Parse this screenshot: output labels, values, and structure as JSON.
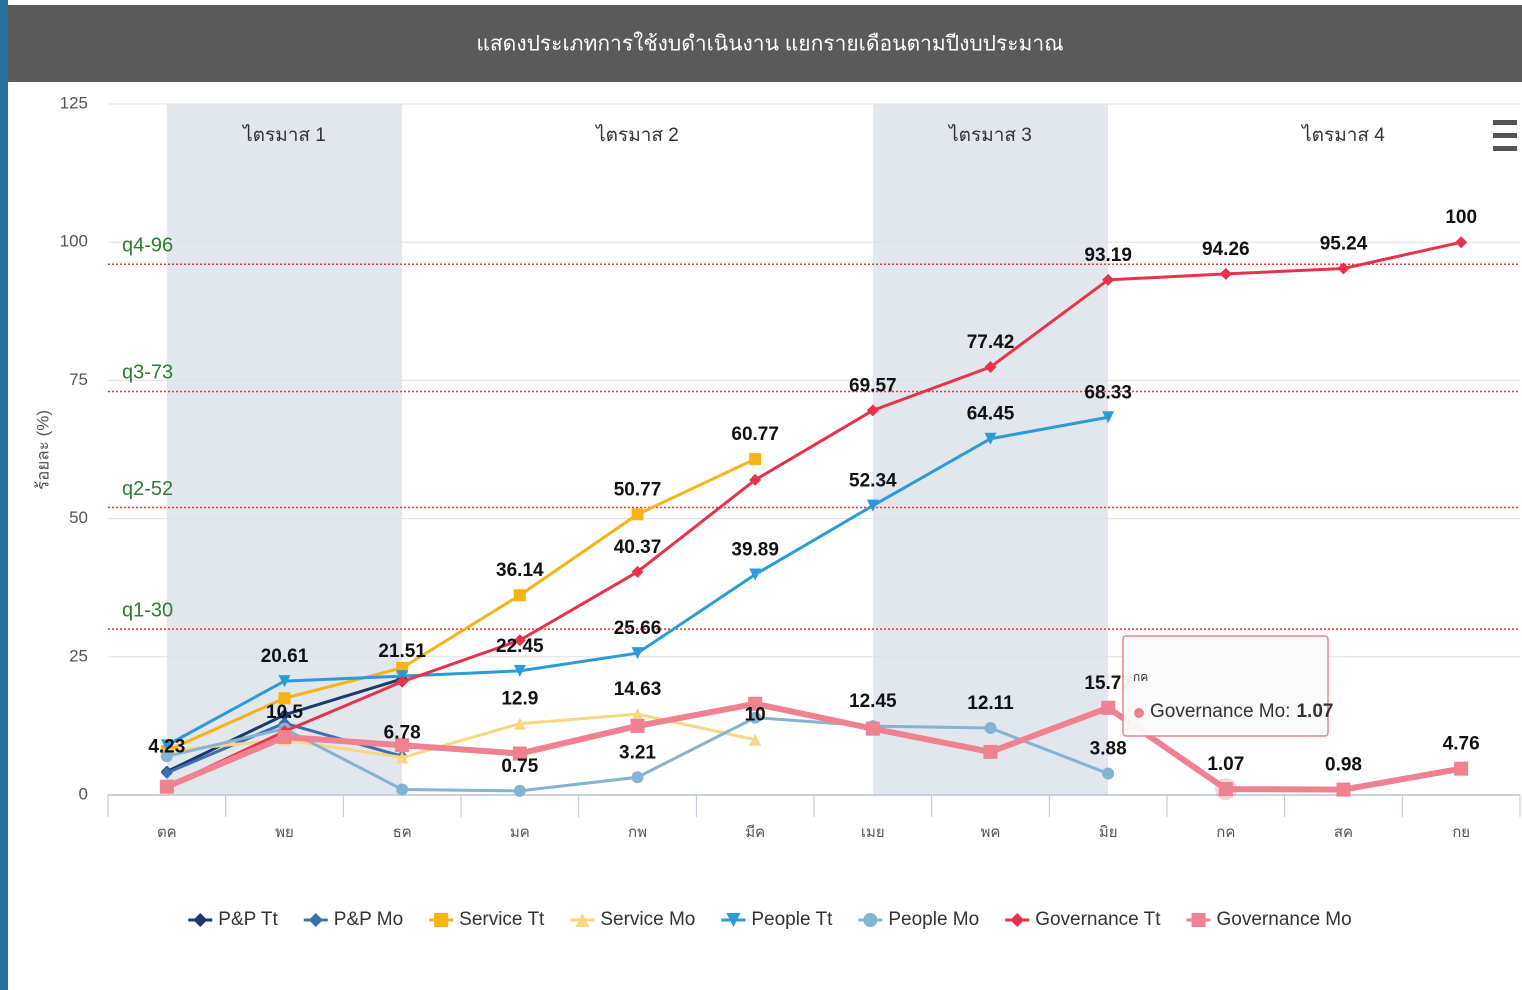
{
  "chart_data": {
    "type": "line",
    "title": "แสดงประเภทการใช้งบดำเนินงาน แยกรายเดือนตามปีงบประมาณ",
    "y_label": "ร้อยละ (%)",
    "categories": [
      "ตค",
      "พย",
      "ธค",
      "มค",
      "กพ",
      "มีค",
      "เมย",
      "พค",
      "มิย",
      "กค",
      "สค",
      "กย"
    ],
    "ylim": [
      0,
      125
    ],
    "yticks": [
      0,
      25,
      50,
      75,
      100,
      125
    ],
    "grid": true,
    "legend": "bottom",
    "plot_bands": [
      {
        "label": "ไตรมาส 1",
        "from": 0,
        "to": 2,
        "color": "#e2e6ed"
      },
      {
        "label": "ไตรมาส 2",
        "from": 2,
        "to": 6,
        "color": "#ffffff"
      },
      {
        "label": "ไตรมาส 3",
        "from": 6,
        "to": 8,
        "color": "#e2e6ed"
      },
      {
        "label": "ไตรมาส 4",
        "from": 8,
        "to": 12,
        "color": "#ffffff"
      }
    ],
    "plot_lines": [
      {
        "label": "q1-30",
        "value": 30
      },
      {
        "label": "q2-52",
        "value": 52
      },
      {
        "label": "q3-73",
        "value": 73
      },
      {
        "label": "q4-96",
        "value": 96
      }
    ],
    "series": [
      {
        "name": "P&P Tt",
        "color": "#1b3a6b",
        "marker": "diamond",
        "line_width": 3,
        "values": [
          4.23,
          14.5,
          21,
          null,
          null,
          null,
          null,
          null,
          null,
          null,
          null,
          null
        ],
        "value_labels": [
          "4.23",
          null,
          null,
          null,
          null,
          null,
          null,
          null,
          null,
          null,
          null,
          null
        ]
      },
      {
        "name": "P&P Mo",
        "color": "#3b6fae",
        "marker": "diamond",
        "line_width": 3,
        "values": [
          4,
          13,
          7,
          null,
          null,
          null,
          null,
          null,
          null,
          null,
          null,
          null
        ]
      },
      {
        "name": "Service Tt",
        "color": "#f6b314",
        "marker": "square",
        "line_width": 3,
        "values": [
          8,
          17.5,
          23,
          36.14,
          50.77,
          60.77,
          null,
          null,
          null,
          null,
          null,
          null
        ],
        "value_labels": [
          null,
          null,
          null,
          "36.14",
          "50.77",
          "60.77",
          null,
          null,
          null,
          null,
          null,
          null
        ]
      },
      {
        "name": "Service Mo",
        "color": "#f9d680",
        "marker": "triangle",
        "line_width": 3,
        "values": [
          8,
          10,
          6.78,
          12.9,
          14.63,
          10,
          null,
          null,
          null,
          null,
          null,
          null
        ],
        "value_labels": [
          null,
          null,
          "6.78",
          "12.9",
          "14.63",
          "10",
          null,
          null,
          null,
          null,
          null,
          null
        ]
      },
      {
        "name": "People Tt",
        "color": "#2b9bd8",
        "marker": "triangle-down",
        "line_width": 3,
        "values": [
          9,
          20.61,
          21.51,
          22.45,
          25.66,
          39.89,
          52.34,
          64.45,
          68.33,
          null,
          null,
          null
        ],
        "value_labels": [
          null,
          "20.61",
          "21.51",
          "22.45",
          "25.66",
          "39.89",
          "52.34",
          "64.45",
          "68.33",
          null,
          null,
          null
        ]
      },
      {
        "name": "People Mo",
        "color": "#85b4d2",
        "marker": "circle",
        "line_width": 3,
        "values": [
          7,
          12,
          1,
          0.75,
          3.21,
          14,
          12.45,
          12.11,
          3.88,
          null,
          null,
          null
        ],
        "value_labels": [
          null,
          null,
          null,
          "0.75",
          "3.21",
          null,
          "12.45",
          "12.11",
          "3.88",
          null,
          null,
          null
        ]
      },
      {
        "name": "Governance Tt",
        "color": "#e8314a",
        "marker": "diamond",
        "line_width": 3,
        "values": [
          1.5,
          11.5,
          20.5,
          28,
          40.37,
          57,
          69.57,
          77.42,
          93.19,
          94.26,
          95.24,
          100
        ],
        "value_labels": [
          null,
          null,
          null,
          null,
          "40.37",
          null,
          "69.57",
          "77.42",
          "93.19",
          "94.26",
          "95.24",
          "100"
        ]
      },
      {
        "name": "Governance Mo",
        "color": "#ef8190",
        "marker": "square",
        "line_width": 6,
        "values": [
          1.5,
          10.5,
          9,
          7.5,
          12.5,
          16.5,
          12,
          7.8,
          15.77,
          1.07,
          0.98,
          4.76
        ],
        "value_labels": [
          null,
          "10.5",
          null,
          null,
          null,
          null,
          null,
          null,
          "15.77",
          "1.07",
          "0.98",
          "4.76"
        ]
      }
    ],
    "tooltip": {
      "title": "กค",
      "label": "Governance Mo:",
      "value": 1.07
    }
  }
}
